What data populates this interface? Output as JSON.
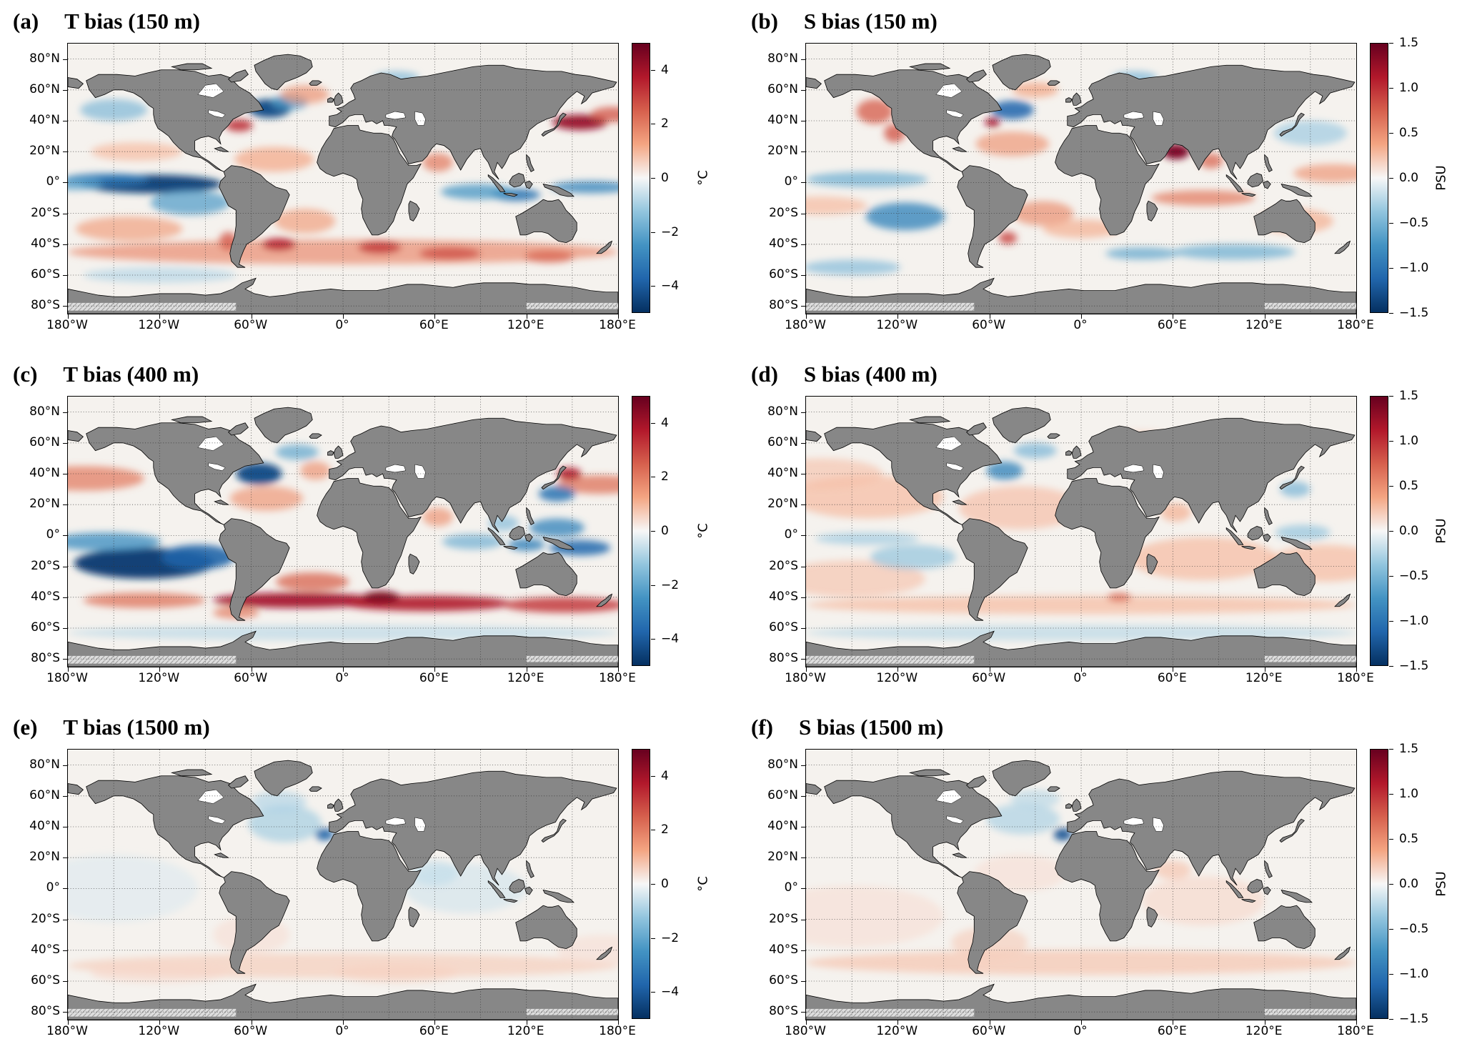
{
  "chart_data": {
    "type": "heatmap",
    "subtype": "global-ocean-bias-maps",
    "layout": "3x2-grid",
    "feature_format": [
      "lon_deg",
      "lat_deg",
      "half_width_deg",
      "half_height_deg",
      "bias_value"
    ],
    "axes": {
      "lon_range": [
        -180,
        180
      ],
      "lat_range": [
        -85,
        90
      ],
      "lat_gridline_step_deg": 20,
      "lon_gridline_step_deg": 30,
      "lat_ticks": [
        {
          "value": 80,
          "label": "80°N"
        },
        {
          "value": 60,
          "label": "60°N"
        },
        {
          "value": 40,
          "label": "40°N"
        },
        {
          "value": 20,
          "label": "20°N"
        },
        {
          "value": 0,
          "label": "0°"
        },
        {
          "value": -20,
          "label": "20°S"
        },
        {
          "value": -40,
          "label": "40°S"
        },
        {
          "value": -60,
          "label": "60°S"
        },
        {
          "value": -80,
          "label": "80°S"
        }
      ],
      "lon_ticks": [
        {
          "value": -180,
          "label": "180°W"
        },
        {
          "value": -120,
          "label": "120°W"
        },
        {
          "value": -60,
          "label": "60°W"
        },
        {
          "value": 0,
          "label": "0°"
        },
        {
          "value": 60,
          "label": "60°E"
        },
        {
          "value": 120,
          "label": "120°E"
        },
        {
          "value": 180,
          "label": "180°E"
        }
      ]
    },
    "style": {
      "land_color": "#878787",
      "ocean_zero_color": "#f5f2ee",
      "coastline_color": "#000000",
      "grid_color": "#333333",
      "colormap_stops": [
        "#053061",
        "#2166ac",
        "#4393c3",
        "#92c5de",
        "#f7f7f7",
        "#f4a582",
        "#d6604d",
        "#b2182b",
        "#67001f"
      ]
    },
    "panels": [
      {
        "letter": "(a)",
        "title": "T bias (150 m)",
        "variable": "temperature",
        "depth_m": 150,
        "colorbar": {
          "unit": "°C",
          "vmin": -5,
          "vmax": 5,
          "ticks": [
            {
              "value": 4,
              "label": "4"
            },
            {
              "value": 2,
              "label": "2"
            },
            {
              "value": 0,
              "label": "0"
            },
            {
              "value": -2,
              "label": "−2"
            },
            {
              "value": -4,
              "label": "−4"
            }
          ]
        },
        "features": [
          [
            -125,
            -1,
            46,
            6,
            -4.6
          ],
          [
            -155,
            2,
            28,
            4,
            -3.2
          ],
          [
            -175,
            -1,
            18,
            4,
            -2.2
          ],
          [
            -100,
            -13,
            26,
            8,
            -2.2
          ],
          [
            -140,
            -30,
            35,
            8,
            1.4
          ],
          [
            -48,
            48,
            14,
            6,
            -4.4
          ],
          [
            -35,
            52,
            12,
            5,
            -2.4
          ],
          [
            -68,
            37,
            9,
            4,
            3.4
          ],
          [
            -25,
            57,
            16,
            6,
            1.6
          ],
          [
            -45,
            15,
            26,
            8,
            1.3
          ],
          [
            -25,
            -25,
            20,
            8,
            1.4
          ],
          [
            155,
            39,
            18,
            5,
            4.2
          ],
          [
            176,
            44,
            14,
            5,
            2.6
          ],
          [
            -150,
            47,
            22,
            7,
            -1.6
          ],
          [
            -135,
            20,
            30,
            6,
            1.0
          ],
          [
            162,
            -3,
            26,
            4,
            -2.8
          ],
          [
            113,
            -8,
            16,
            4,
            -3.4
          ],
          [
            88,
            -6,
            24,
            5,
            -2.4
          ],
          [
            62,
            13,
            10,
            6,
            2.0
          ],
          [
            0,
            -45,
            180,
            8,
            1.7
          ],
          [
            -42,
            -40,
            11,
            4,
            3.6
          ],
          [
            24,
            -42,
            14,
            4,
            3.2
          ],
          [
            70,
            -46,
            20,
            4,
            2.8
          ],
          [
            135,
            -48,
            16,
            4,
            2.4
          ],
          [
            -75,
            -38,
            6,
            6,
            2.6
          ],
          [
            -120,
            -60,
            50,
            5,
            -0.9
          ],
          [
            35,
            68,
            15,
            4,
            -1.6
          ]
        ]
      },
      {
        "letter": "(b)",
        "title": "S bias (150 m)",
        "variable": "salinity",
        "depth_m": 150,
        "colorbar": {
          "unit": "PSU",
          "vmin": -1.5,
          "vmax": 1.5,
          "ticks": [
            {
              "value": 1.5,
              "label": "1.5"
            },
            {
              "value": 1,
              "label": "1.0"
            },
            {
              "value": 0.5,
              "label": "0.5"
            },
            {
              "value": 0,
              "label": "0.0"
            },
            {
              "value": -0.5,
              "label": "−0.5"
            },
            {
              "value": -1,
              "label": "−1.0"
            },
            {
              "value": -1.5,
              "label": "−1.5"
            }
          ]
        },
        "features": [
          [
            -140,
            2,
            40,
            5,
            -0.55
          ],
          [
            -115,
            -22,
            26,
            9,
            -0.85
          ],
          [
            -45,
            47,
            14,
            6,
            -1.1
          ],
          [
            -135,
            46,
            12,
            8,
            0.75
          ],
          [
            -122,
            32,
            7,
            6,
            0.8
          ],
          [
            62,
            20,
            9,
            5,
            1.4
          ],
          [
            85,
            14,
            8,
            5,
            0.7
          ],
          [
            80,
            -10,
            34,
            5,
            0.6
          ],
          [
            165,
            6,
            26,
            6,
            0.45
          ],
          [
            -25,
            -20,
            20,
            8,
            0.5
          ],
          [
            100,
            -45,
            40,
            5,
            -0.55
          ],
          [
            -150,
            -55,
            32,
            5,
            -0.45
          ],
          [
            40,
            -46,
            24,
            4,
            -0.6
          ],
          [
            -45,
            25,
            24,
            8,
            0.45
          ],
          [
            -58,
            39,
            5,
            3,
            1.2
          ],
          [
            150,
            32,
            24,
            8,
            -0.35
          ],
          [
            -48,
            -36,
            6,
            4,
            0.9
          ],
          [
            0,
            -30,
            25,
            6,
            0.35
          ],
          [
            -170,
            -15,
            30,
            6,
            0.3
          ],
          [
            140,
            -25,
            25,
            8,
            0.35
          ],
          [
            35,
            68,
            15,
            4,
            -0.5
          ],
          [
            -30,
            60,
            15,
            5,
            0.4
          ]
        ]
      },
      {
        "letter": "(c)",
        "title": "T bias (400 m)",
        "variable": "temperature",
        "depth_m": 400,
        "colorbar": {
          "unit": "°C",
          "vmin": -5,
          "vmax": 5,
          "ticks": [
            {
              "value": 4,
              "label": "4"
            },
            {
              "value": 2,
              "label": "2"
            },
            {
              "value": 0,
              "label": "0"
            },
            {
              "value": -2,
              "label": "−2"
            },
            {
              "value": -4,
              "label": "−4"
            }
          ]
        },
        "features": [
          [
            -130,
            -18,
            46,
            10,
            -4.7
          ],
          [
            -95,
            -14,
            24,
            8,
            -3.8
          ],
          [
            -155,
            -4,
            36,
            6,
            -2.6
          ],
          [
            -55,
            40,
            15,
            7,
            -4.4
          ],
          [
            -30,
            54,
            14,
            5,
            -2.0
          ],
          [
            -170,
            37,
            40,
            8,
            2.0
          ],
          [
            168,
            33,
            28,
            6,
            2.2
          ],
          [
            148,
            40,
            8,
            4,
            3.8
          ],
          [
            140,
            27,
            12,
            5,
            -3.4
          ],
          [
            140,
            5,
            18,
            6,
            -2.8
          ],
          [
            155,
            -8,
            20,
            5,
            -3.6
          ],
          [
            120,
            -6,
            12,
            4,
            -3.0
          ],
          [
            85,
            -4,
            20,
            5,
            -1.8
          ],
          [
            -30,
            -42,
            55,
            5,
            4.0
          ],
          [
            55,
            -44,
            55,
            5,
            3.8
          ],
          [
            145,
            -45,
            40,
            5,
            3.2
          ],
          [
            -130,
            -42,
            40,
            5,
            2.2
          ],
          [
            25,
            -40,
            12,
            4,
            4.6
          ],
          [
            -20,
            -30,
            24,
            6,
            2.4
          ],
          [
            -50,
            24,
            24,
            8,
            1.5
          ],
          [
            62,
            12,
            10,
            6,
            1.6
          ],
          [
            0,
            -63,
            180,
            5,
            -0.8
          ],
          [
            -18,
            42,
            10,
            6,
            1.6
          ],
          [
            105,
            8,
            10,
            5,
            -1.5
          ],
          [
            -70,
            -50,
            15,
            4,
            2.0
          ]
        ]
      },
      {
        "letter": "(d)",
        "title": "S bias (400 m)",
        "variable": "salinity",
        "depth_m": 400,
        "colorbar": {
          "unit": "PSU",
          "vmin": -1.5,
          "vmax": 1.5,
          "ticks": [
            {
              "value": 1.5,
              "label": "1.5"
            },
            {
              "value": 1,
              "label": "1.0"
            },
            {
              "value": 0.5,
              "label": "0.5"
            },
            {
              "value": 0,
              "label": "0.0"
            },
            {
              "value": -0.5,
              "label": "−0.5"
            },
            {
              "value": -1,
              "label": "−1.0"
            },
            {
              "value": -1.5,
              "label": "−1.5"
            }
          ]
        },
        "features": [
          [
            -140,
            25,
            50,
            14,
            0.3
          ],
          [
            -40,
            18,
            40,
            14,
            0.28
          ],
          [
            80,
            -15,
            48,
            14,
            0.3
          ],
          [
            160,
            -18,
            38,
            12,
            0.3
          ],
          [
            -150,
            -28,
            48,
            12,
            0.25
          ],
          [
            -110,
            -14,
            28,
            8,
            -0.4
          ],
          [
            -140,
            -2,
            34,
            4,
            -0.35
          ],
          [
            -50,
            42,
            12,
            6,
            -0.85
          ],
          [
            -30,
            55,
            14,
            5,
            -0.5
          ],
          [
            145,
            2,
            18,
            5,
            -0.4
          ],
          [
            0,
            -45,
            180,
            6,
            0.3
          ],
          [
            0,
            -63,
            180,
            5,
            -0.25
          ],
          [
            25,
            -40,
            8,
            3,
            0.7
          ],
          [
            140,
            30,
            10,
            5,
            -0.5
          ],
          [
            -170,
            40,
            40,
            10,
            0.25
          ],
          [
            40,
            62,
            20,
            6,
            0.2
          ],
          [
            62,
            15,
            10,
            6,
            0.35
          ]
        ]
      },
      {
        "letter": "(e)",
        "title": "T bias (1500 m)",
        "variable": "temperature",
        "depth_m": 1500,
        "colorbar": {
          "unit": "°C",
          "vmin": -5,
          "vmax": 5,
          "ticks": [
            {
              "value": 4,
              "label": "4"
            },
            {
              "value": 2,
              "label": "2"
            },
            {
              "value": 0,
              "label": "0"
            },
            {
              "value": -2,
              "label": "−2"
            },
            {
              "value": -4,
              "label": "−4"
            }
          ]
        },
        "features": [
          [
            -38,
            42,
            24,
            12,
            -1.1
          ],
          [
            -12,
            35,
            6,
            4,
            -3.8
          ],
          [
            -42,
            56,
            18,
            7,
            -0.9
          ],
          [
            0,
            -50,
            180,
            8,
            0.7
          ],
          [
            80,
            0,
            40,
            16,
            -0.5
          ],
          [
            -150,
            0,
            55,
            22,
            -0.35
          ],
          [
            60,
            10,
            15,
            8,
            -0.7
          ],
          [
            -60,
            -30,
            25,
            12,
            0.4
          ],
          [
            -120,
            -55,
            45,
            6,
            0.5
          ],
          [
            170,
            -40,
            30,
            10,
            0.4
          ],
          [
            35,
            -55,
            40,
            6,
            0.6
          ]
        ]
      },
      {
        "letter": "(f)",
        "title": "S bias (1500 m)",
        "variable": "salinity",
        "depth_m": 1500,
        "colorbar": {
          "unit": "PSU",
          "vmin": -1.5,
          "vmax": 1.5,
          "ticks": [
            {
              "value": 1.5,
              "label": "1.5"
            },
            {
              "value": 1,
              "label": "1.0"
            },
            {
              "value": 0.5,
              "label": "0.5"
            },
            {
              "value": 0,
              "label": "0.0"
            },
            {
              "value": -0.5,
              "label": "−0.5"
            },
            {
              "value": -1,
              "label": "−1.0"
            },
            {
              "value": -1.5,
              "label": "−1.5"
            }
          ]
        },
        "features": [
          [
            -38,
            45,
            24,
            10,
            -0.3
          ],
          [
            -12,
            35,
            6,
            4,
            -1.25
          ],
          [
            0,
            -48,
            180,
            8,
            0.25
          ],
          [
            -150,
            -18,
            60,
            20,
            0.12
          ],
          [
            80,
            -8,
            40,
            16,
            0.15
          ],
          [
            60,
            12,
            12,
            6,
            0.25
          ],
          [
            -30,
            58,
            16,
            6,
            -0.25
          ],
          [
            -60,
            -35,
            25,
            10,
            0.2
          ],
          [
            -40,
            10,
            30,
            12,
            0.12
          ]
        ]
      }
    ]
  }
}
